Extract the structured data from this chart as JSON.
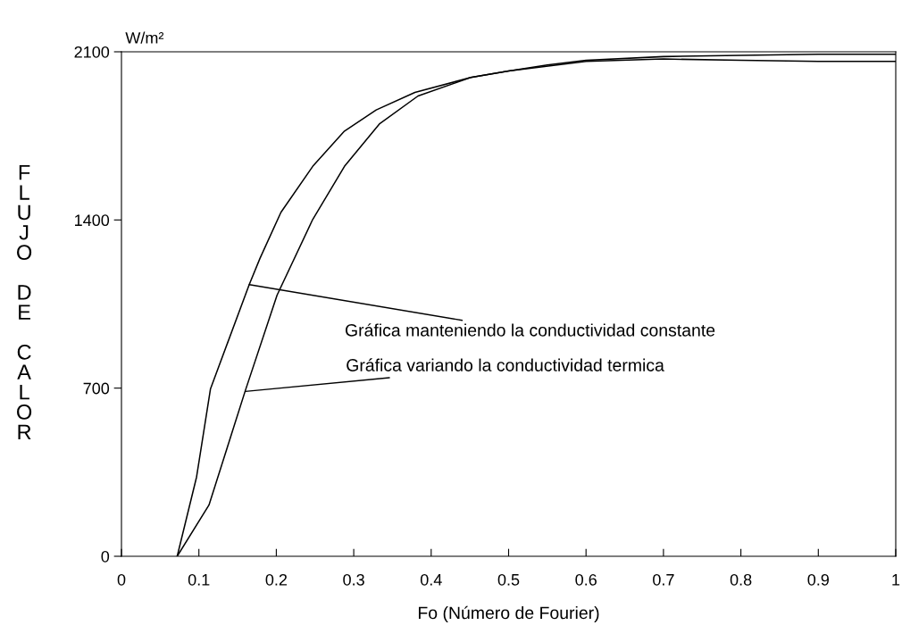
{
  "chart_data": {
    "type": "line",
    "xlabel": "Fo (Número de Fourier)",
    "ylabel": "FLUJO DE CALOR",
    "xlim": [
      0,
      1
    ],
    "ylim": [
      0,
      2100
    ],
    "xticks": [
      0,
      0.1,
      0.2,
      0.3,
      0.4,
      0.5,
      0.6,
      0.7,
      0.8,
      0.9,
      1
    ],
    "yticks": [
      0,
      700,
      1400,
      2100
    ],
    "grid": false,
    "legend": false,
    "marker": "none",
    "line_style": "solid",
    "series": [
      {
        "color": "#000000",
        "x": [
          0.072,
          0.097,
          0.115,
          0.165,
          0.179,
          0.206,
          0.247,
          0.288,
          0.329,
          0.379,
          0.451,
          0.5,
          0.55,
          0.6,
          0.7,
          0.8,
          0.9,
          1.0
        ],
        "values": [
          0,
          330,
          697,
          1131,
          1241,
          1432,
          1623,
          1770,
          1858,
          1931,
          1993,
          2020,
          2045,
          2065,
          2080,
          2085,
          2090,
          2090
        ]
      },
      {
        "color": "#000000",
        "x": [
          0.072,
          0.113,
          0.142,
          0.16,
          0.201,
          0.247,
          0.288,
          0.333,
          0.383,
          0.451,
          0.5,
          0.6,
          0.7,
          0.8,
          0.9,
          1.0
        ],
        "values": [
          0,
          213,
          507,
          690,
          1087,
          1402,
          1623,
          1799,
          1916,
          1993,
          2020,
          2060,
          2070,
          2065,
          2060,
          2060
        ]
      }
    ],
    "annotations": [
      "W/m²",
      {
        "text": "Gráfica manteniendo la conductividad constante",
        "x": 0.165,
        "y": 1131
      },
      {
        "text": "Gráfica variando la conductividad termica",
        "x": 0.16,
        "y": 686
      }
    ]
  }
}
